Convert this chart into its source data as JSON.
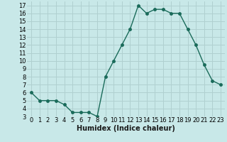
{
  "x": [
    0,
    1,
    2,
    3,
    4,
    5,
    6,
    7,
    8,
    9,
    10,
    11,
    12,
    13,
    14,
    15,
    16,
    17,
    18,
    19,
    20,
    21,
    22,
    23
  ],
  "y": [
    6,
    5,
    5,
    5,
    4.5,
    3.5,
    3.5,
    3.5,
    3,
    8,
    10,
    12,
    14,
    17,
    16,
    16.5,
    16.5,
    16,
    16,
    14,
    12,
    9.5,
    7.5,
    7
  ],
  "title": "",
  "xlabel": "Humidex (Indice chaleur)",
  "xlim": [
    -0.5,
    23.5
  ],
  "ylim": [
    3,
    17.5
  ],
  "yticks": [
    3,
    4,
    5,
    6,
    7,
    8,
    9,
    10,
    11,
    12,
    13,
    14,
    15,
    16,
    17
  ],
  "xticks": [
    0,
    1,
    2,
    3,
    4,
    5,
    6,
    7,
    8,
    9,
    10,
    11,
    12,
    13,
    14,
    15,
    16,
    17,
    18,
    19,
    20,
    21,
    22,
    23
  ],
  "line_color": "#1a6b5a",
  "marker_size": 2.5,
  "bg_color": "#c8e8e8",
  "grid_color": "#b0d0d0",
  "tick_fontsize": 6,
  "xlabel_fontsize": 7
}
